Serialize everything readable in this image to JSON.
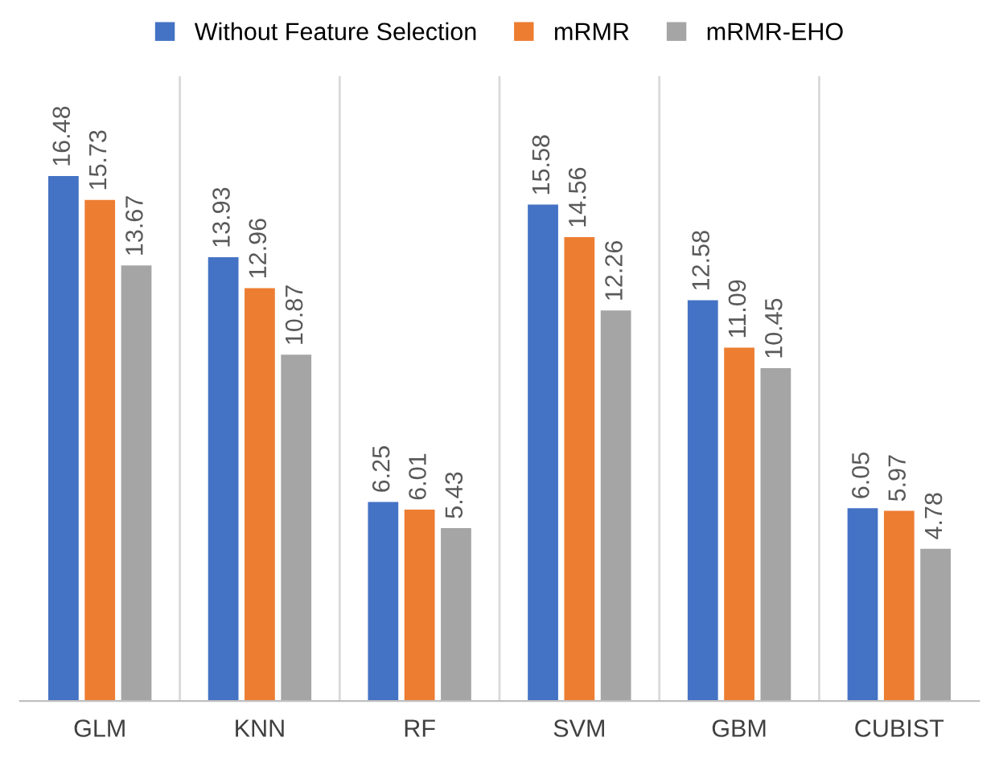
{
  "chart_data": {
    "type": "bar",
    "categories": [
      "GLM",
      "KNN",
      "RF",
      "SVM",
      "GBM",
      "CUBIST"
    ],
    "series": [
      {
        "name": "Without Feature Selection",
        "color": "#4472c4",
        "values": [
          16.48,
          13.93,
          6.25,
          15.58,
          12.58,
          6.05
        ]
      },
      {
        "name": "mRMR",
        "color": "#ed7d31",
        "values": [
          15.73,
          12.96,
          6.01,
          14.56,
          11.09,
          5.97
        ]
      },
      {
        "name": "mRMR-EHO",
        "color": "#a5a5a5",
        "values": [
          13.67,
          10.87,
          5.43,
          12.26,
          10.45,
          4.78
        ]
      }
    ],
    "data_labels": true,
    "grid": "x",
    "legend": "top",
    "tick_labels": "x"
  }
}
